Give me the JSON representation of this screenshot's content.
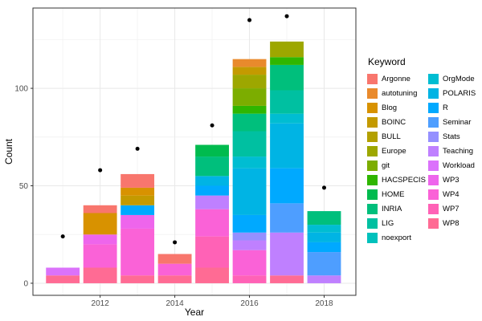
{
  "figure": {
    "xlabel": "Year",
    "ylabel": "Count",
    "legend_title": "Keyword",
    "background": "#ffffff",
    "panel_border_color": "#333333",
    "grid_major_color": "#e8e8e8",
    "grid_minor_color": "#f4f4f4",
    "tick_text_color": "#4d4d4d",
    "point_color": "#000000"
  },
  "chart_data": {
    "type": "bar",
    "subtype": "stacked-bars-with-points",
    "title": "",
    "xlabel": "Year",
    "ylabel": "Count",
    "legend_position": "right",
    "legend_title": "Keyword",
    "grid": true,
    "xlim": [
      2010.2,
      2018.85
    ],
    "ylim": [
      -6.2,
      141.2
    ],
    "x_ticks": [
      2012,
      2014,
      2016,
      2018
    ],
    "x_tick_labels": [
      "2012",
      "2014",
      "2016",
      "2018"
    ],
    "x_minor": [
      2011,
      2013,
      2015,
      2017
    ],
    "y_ticks": [
      0,
      50,
      100
    ],
    "y_tick_labels": [
      "0",
      "50",
      "100"
    ],
    "y_minor": [
      25,
      75,
      125
    ],
    "bar_width_years": 0.9,
    "keywords": [
      {
        "name": "Argonne",
        "color": "#F8766D"
      },
      {
        "name": "autotuning",
        "color": "#E98A2C"
      },
      {
        "name": "Blog",
        "color": "#D89200"
      },
      {
        "name": "BOINC",
        "color": "#C49A00"
      },
      {
        "name": "BULL",
        "color": "#B3A000"
      },
      {
        "name": "Europe",
        "color": "#9DA700"
      },
      {
        "name": "git",
        "color": "#7CAD00"
      },
      {
        "name": "HACSPECIS",
        "color": "#2FB600"
      },
      {
        "name": "HOME",
        "color": "#00BB4E"
      },
      {
        "name": "INRIA",
        "color": "#00BF7C"
      },
      {
        "name": "LIG",
        "color": "#00C0A1"
      },
      {
        "name": "noexport",
        "color": "#00C1BC"
      },
      {
        "name": "OrgMode",
        "color": "#00BDD2"
      },
      {
        "name": "POLARIS",
        "color": "#00B4E4"
      },
      {
        "name": "R",
        "color": "#00A9FF"
      },
      {
        "name": "Seminar",
        "color": "#4E9EFF"
      },
      {
        "name": "Stats",
        "color": "#9590FF"
      },
      {
        "name": "Teaching",
        "color": "#BF80FF"
      },
      {
        "name": "Workload",
        "color": "#DB72FB"
      },
      {
        "name": "WP3",
        "color": "#EE65EC"
      },
      {
        "name": "WP4",
        "color": "#FA62D7"
      },
      {
        "name": "WP7",
        "color": "#FF62B6"
      },
      {
        "name": "WP8",
        "color": "#FF6B94"
      }
    ],
    "bars": [
      {
        "year": 2011,
        "total": 8,
        "segments": [
          {
            "keyword": "WP8",
            "value": 4
          },
          {
            "keyword": "Workload",
            "value": 4
          }
        ]
      },
      {
        "year": 2012,
        "total": 40,
        "segments": [
          {
            "keyword": "WP8",
            "value": 8
          },
          {
            "keyword": "WP4",
            "value": 12
          },
          {
            "keyword": "WP3",
            "value": 5
          },
          {
            "keyword": "Blog",
            "value": 11
          },
          {
            "keyword": "Argonne",
            "value": 4
          }
        ]
      },
      {
        "year": 2013,
        "total": 56,
        "segments": [
          {
            "keyword": "WP8",
            "value": 4
          },
          {
            "keyword": "WP4",
            "value": 24
          },
          {
            "keyword": "WP3",
            "value": 7
          },
          {
            "keyword": "R",
            "value": 5
          },
          {
            "keyword": "BOINC",
            "value": 5
          },
          {
            "keyword": "Blog",
            "value": 4
          },
          {
            "keyword": "Argonne",
            "value": 7
          }
        ]
      },
      {
        "year": 2014,
        "total": 15,
        "segments": [
          {
            "keyword": "WP8",
            "value": 4
          },
          {
            "keyword": "WP4",
            "value": 6
          },
          {
            "keyword": "Argonne",
            "value": 5
          }
        ]
      },
      {
        "year": 2015,
        "total": 71,
        "segments": [
          {
            "keyword": "WP8",
            "value": 8
          },
          {
            "keyword": "WP7",
            "value": 16
          },
          {
            "keyword": "WP4",
            "value": 14
          },
          {
            "keyword": "Teaching",
            "value": 7
          },
          {
            "keyword": "R",
            "value": 5
          },
          {
            "keyword": "POLARIS",
            "value": 5
          },
          {
            "keyword": "INRIA",
            "value": 10
          },
          {
            "keyword": "HOME",
            "value": 6
          }
        ]
      },
      {
        "year": 2016,
        "total": 115,
        "segments": [
          {
            "keyword": "WP7",
            "value": 4
          },
          {
            "keyword": "WP4",
            "value": 13
          },
          {
            "keyword": "Teaching",
            "value": 5
          },
          {
            "keyword": "Stats",
            "value": 4
          },
          {
            "keyword": "R",
            "value": 9
          },
          {
            "keyword": "POLARIS",
            "value": 24
          },
          {
            "keyword": "OrgMode",
            "value": 6
          },
          {
            "keyword": "LIG",
            "value": 13
          },
          {
            "keyword": "INRIA",
            "value": 9
          },
          {
            "keyword": "HACSPECIS",
            "value": 4
          },
          {
            "keyword": "git",
            "value": 9
          },
          {
            "keyword": "Europe",
            "value": 7
          },
          {
            "keyword": "BOINC",
            "value": 4
          },
          {
            "keyword": "autotuning",
            "value": 4
          }
        ]
      },
      {
        "year": 2017,
        "total": 124,
        "segments": [
          {
            "keyword": "WP8",
            "value": 4
          },
          {
            "keyword": "Teaching",
            "value": 22
          },
          {
            "keyword": "Seminar",
            "value": 15
          },
          {
            "keyword": "R",
            "value": 18
          },
          {
            "keyword": "POLARIS",
            "value": 23
          },
          {
            "keyword": "OrgMode",
            "value": 5
          },
          {
            "keyword": "LIG",
            "value": 12
          },
          {
            "keyword": "INRIA",
            "value": 13
          },
          {
            "keyword": "HACSPECIS",
            "value": 4
          },
          {
            "keyword": "Europe",
            "value": 8
          }
        ]
      },
      {
        "year": 2018,
        "total": 37,
        "segments": [
          {
            "keyword": "Teaching",
            "value": 4
          },
          {
            "keyword": "Seminar",
            "value": 12
          },
          {
            "keyword": "R",
            "value": 5
          },
          {
            "keyword": "POLARIS",
            "value": 5
          },
          {
            "keyword": "OrgMode",
            "value": 4
          },
          {
            "keyword": "INRIA",
            "value": 7
          }
        ]
      }
    ],
    "points": [
      {
        "year": 2011,
        "value": 24
      },
      {
        "year": 2012,
        "value": 58
      },
      {
        "year": 2013,
        "value": 69
      },
      {
        "year": 2014,
        "value": 21
      },
      {
        "year": 2015,
        "value": 81
      },
      {
        "year": 2016,
        "value": 135
      },
      {
        "year": 2017,
        "value": 137
      },
      {
        "year": 2018,
        "value": 49
      }
    ]
  }
}
